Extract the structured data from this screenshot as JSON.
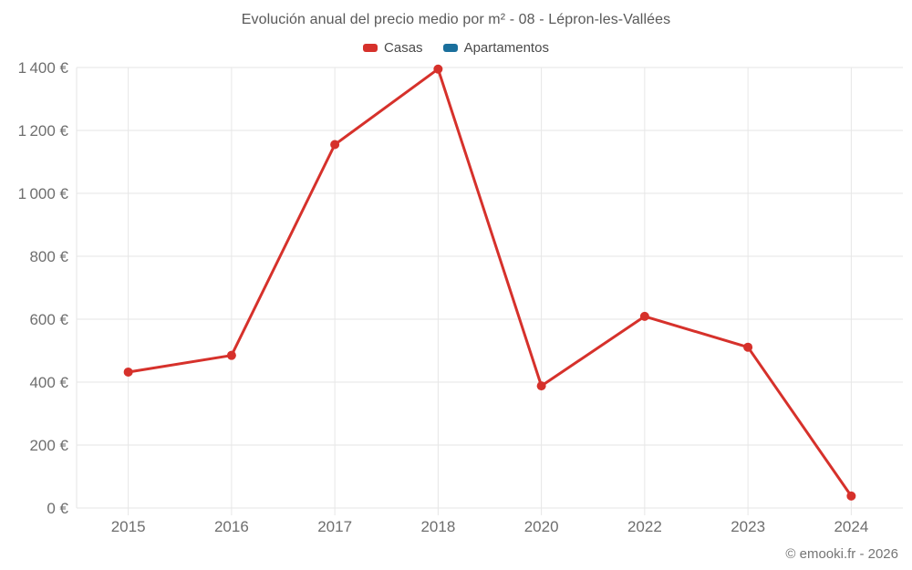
{
  "chart_data": {
    "type": "line",
    "title": "Evolución anual del precio medio por m² - 08 - Lépron-les-Vallées",
    "categories": [
      "2015",
      "2016",
      "2017",
      "2018",
      "2020",
      "2022",
      "2023",
      "2024"
    ],
    "series": [
      {
        "name": "Casas",
        "color": "#d6312b",
        "values": [
          432,
          485,
          1155,
          1395,
          388,
          609,
          511,
          38
        ]
      },
      {
        "name": "Apartamentos",
        "color": "#1a6f9c",
        "values": []
      }
    ],
    "xlabel": "",
    "ylabel": "",
    "ylim": [
      0,
      1400
    ],
    "ytick_step": 200,
    "ytick_suffix": " €",
    "grid": true,
    "legend_position": "top",
    "watermark": "© emooki.fr - 2026",
    "colors": {
      "grid": "#e6e6e6",
      "tick_text": "#6e6e6e",
      "title_text": "#595959",
      "legend_text": "#4a4a4a",
      "watermark_text": "#757575",
      "background": "#ffffff"
    }
  }
}
